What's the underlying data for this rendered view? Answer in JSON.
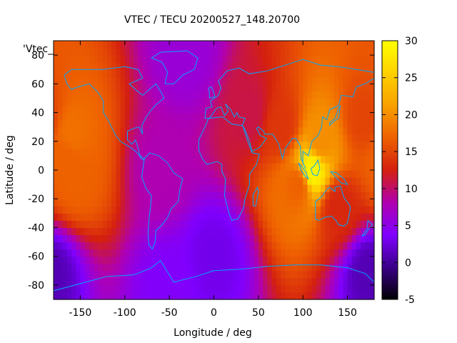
{
  "chart_data": {
    "type": "heatmap",
    "title": "VTEC / TECU 20200527_148.20700",
    "xlabel": "Longitude / deg",
    "ylabel": "Latitude / deg",
    "legend_label": "'Vtec_",
    "xlim": [
      -180,
      180
    ],
    "ylim": [
      -90,
      90
    ],
    "x_ticks": [
      -150,
      -100,
      -50,
      0,
      50,
      100,
      150
    ],
    "y_ticks": [
      -80,
      -60,
      -40,
      -20,
      0,
      20,
      40,
      60,
      80
    ],
    "colorbar": {
      "range": [
        -5,
        30
      ],
      "ticks": [
        -5,
        0,
        5,
        10,
        15,
        20,
        25,
        30
      ],
      "palette": [
        "#000000",
        "#3a0088",
        "#7f00ff",
        "#b000b0",
        "#d4200f",
        "#ee6000",
        "#f8a000",
        "#ffd000",
        "#ffff00"
      ]
    },
    "coastline_color": "#00a8ff",
    "grid_resolution_deg": {
      "lon": 5,
      "lat": 5
    },
    "features": [
      {
        "lon": -165,
        "lat": 10,
        "value": 17
      },
      {
        "lon": -160,
        "lat": 25,
        "value": 18
      },
      {
        "lon": -155,
        "lat": -5,
        "value": 17
      },
      {
        "lon": 110,
        "lat": 0,
        "value": 29
      },
      {
        "lon": 120,
        "lat": 20,
        "value": 20
      },
      {
        "lon": 95,
        "lat": -10,
        "value": 17
      },
      {
        "lon": 140,
        "lat": -25,
        "value": 13
      },
      {
        "lon": 170,
        "lat": 35,
        "value": 15
      },
      {
        "lon": 75,
        "lat": 30,
        "value": 14
      },
      {
        "lon": 40,
        "lat": 40,
        "value": 11
      },
      {
        "lon": -60,
        "lat": 0,
        "value": 8
      },
      {
        "lon": 0,
        "lat": -60,
        "value": 3
      },
      {
        "lon": 175,
        "lat": -70,
        "value": 1
      },
      {
        "lon": -50,
        "lat": -80,
        "value": 4
      },
      {
        "lon": -30,
        "lat": 80,
        "value": 6
      }
    ]
  }
}
